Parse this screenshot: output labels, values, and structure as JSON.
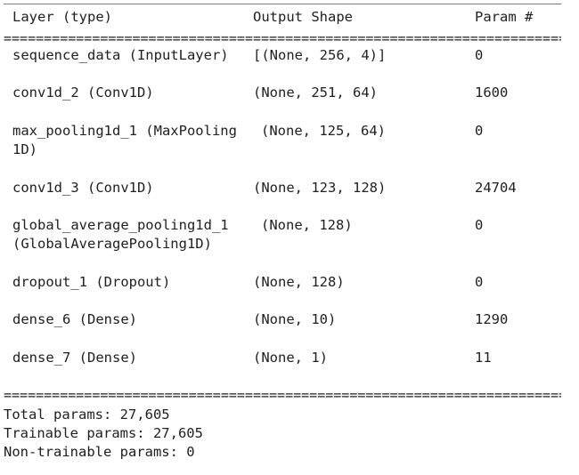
{
  "header": {
    "layer": "Layer (type)",
    "shape": "Output Shape",
    "param": "Param #"
  },
  "separator": "=======================================================================================================",
  "rows": [
    {
      "layer": "sequence_data (InputLayer)",
      "layer_cont": "",
      "shape": "[(None, 256, 4)]",
      "param": "0"
    },
    {
      "layer": "conv1d_2 (Conv1D)",
      "layer_cont": "",
      "shape": "(None, 251, 64)",
      "param": "1600"
    },
    {
      "layer": "max_pooling1d_1 (MaxPooling",
      "layer_cont": "1D)",
      "shape": "(None, 125, 64)",
      "param": "0"
    },
    {
      "layer": "conv1d_3 (Conv1D)",
      "layer_cont": "",
      "shape": "(None, 123, 128)",
      "param": "24704"
    },
    {
      "layer": "global_average_pooling1d_1",
      "layer_cont": "(GlobalAveragePooling1D)",
      "shape": "(None, 128)",
      "param": "0"
    },
    {
      "layer": "dropout_1 (Dropout)",
      "layer_cont": "",
      "shape": "(None, 128)",
      "param": "0"
    },
    {
      "layer": "dense_6 (Dense)",
      "layer_cont": "",
      "shape": "(None, 10)",
      "param": "1290"
    },
    {
      "layer": "dense_7 (Dense)",
      "layer_cont": "",
      "shape": "(None, 1)",
      "param": "11"
    }
  ],
  "summary": {
    "total": "Total params: 27,605",
    "trainable": "Trainable params: 27,605",
    "non_trainable": "Non-trainable params: 0"
  }
}
